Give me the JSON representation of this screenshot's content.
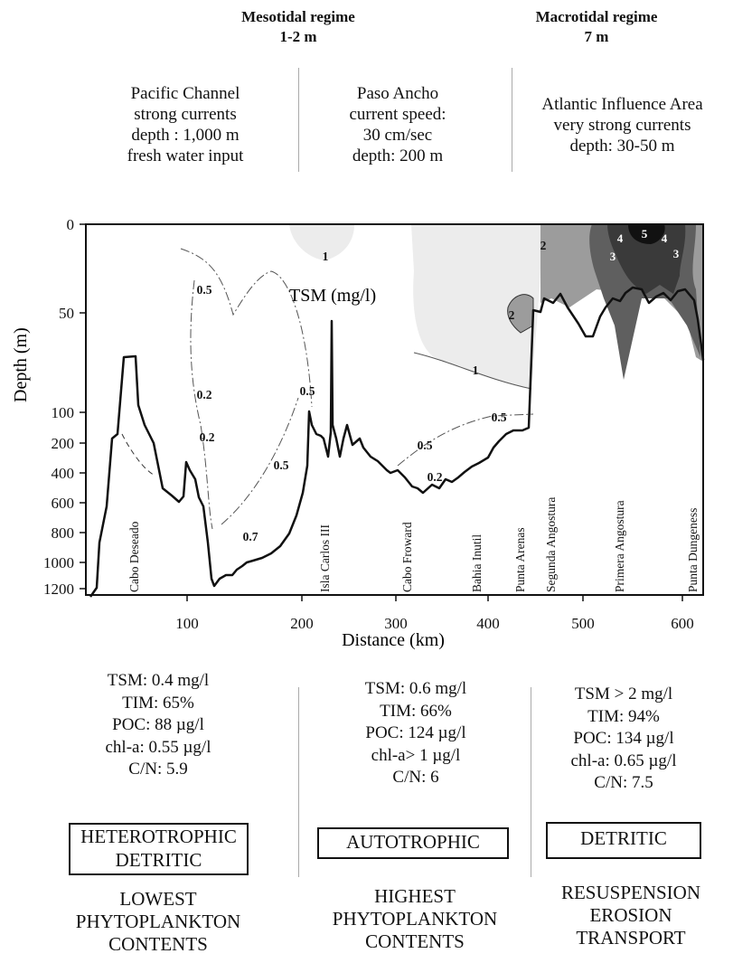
{
  "header": {
    "meso_title": "Mesotidal regime",
    "meso_range": "1-2 m",
    "macro_title": "Macrotidal regime",
    "macro_range": "7 m"
  },
  "zones": {
    "pacific": [
      "Pacific Channel",
      "strong currents",
      "depth : 1,000 m",
      "fresh water input"
    ],
    "paso": [
      "Paso Ancho",
      "current speed:",
      "30 cm/sec",
      "depth: 200 m"
    ],
    "atlantic": [
      "Atlantic Influence Area",
      "very strong currents",
      "depth: 30-50 m"
    ]
  },
  "chart": {
    "ylabel": "Depth (m)",
    "xlabel": "Distance (km)",
    "legend": "TSM (mg/l)",
    "ytick_labels": [
      "0",
      "50",
      "100",
      "200",
      "400",
      "600",
      "800",
      "1000",
      "1200"
    ],
    "xtick_labels": [
      "100",
      "200",
      "300",
      "400",
      "500",
      "600"
    ],
    "locations": [
      "Cabo Deseado",
      "Isla Carlos III",
      "Cabo Froward",
      "Bahia Inutil",
      "Punta Arenas",
      "Segunda Angostura",
      "Primera Angostura",
      "Punta Dungeness"
    ],
    "contours": [
      "0.5",
      "0.2",
      "0.2",
      "0.5",
      "0.5",
      "0.7",
      "1",
      "0.5",
      "0.5",
      "0.2",
      "1",
      "2",
      "2",
      "3",
      "4",
      "5",
      "4",
      "3"
    ],
    "colors": {
      "bottom_line": "#111111",
      "region_2": "#9c9c9c",
      "region_3": "#5f5f5f",
      "region_4": "#3a3a3a",
      "region_5": "#111111",
      "light_fill": "#ececec"
    }
  },
  "stats": {
    "left": [
      "TSM: 0.4 mg/l",
      "TIM: 65%",
      "POC: 88 µg/l",
      "chl-a: 0.55 µg/l",
      "C/N: 5.9"
    ],
    "middle": [
      "TSM: 0.6 mg/l",
      "TIM: 66%",
      "POC: 124 µg/l",
      "chl-a> 1 µg/l",
      "C/N: 6"
    ],
    "right": [
      "TSM > 2 mg/l",
      "TIM: 94%",
      "POC: 134 µg/l",
      "chl-a: 0.65 µg/l",
      "C/N: 7.5"
    ]
  },
  "classes": {
    "left_box": [
      "HETEROTROPHIC",
      "DETRITIC"
    ],
    "middle_box": "AUTOTROPHIC",
    "right_box": "DETRITIC",
    "left_caption": [
      "LOWEST",
      "PHYTOPLANKTON",
      "CONTENTS"
    ],
    "middle_caption": [
      "HIGHEST",
      "PHYTOPLANKTON",
      "CONTENTS"
    ],
    "right_caption": [
      "RESUSPENSION",
      "EROSION",
      "TRANSPORT"
    ]
  }
}
